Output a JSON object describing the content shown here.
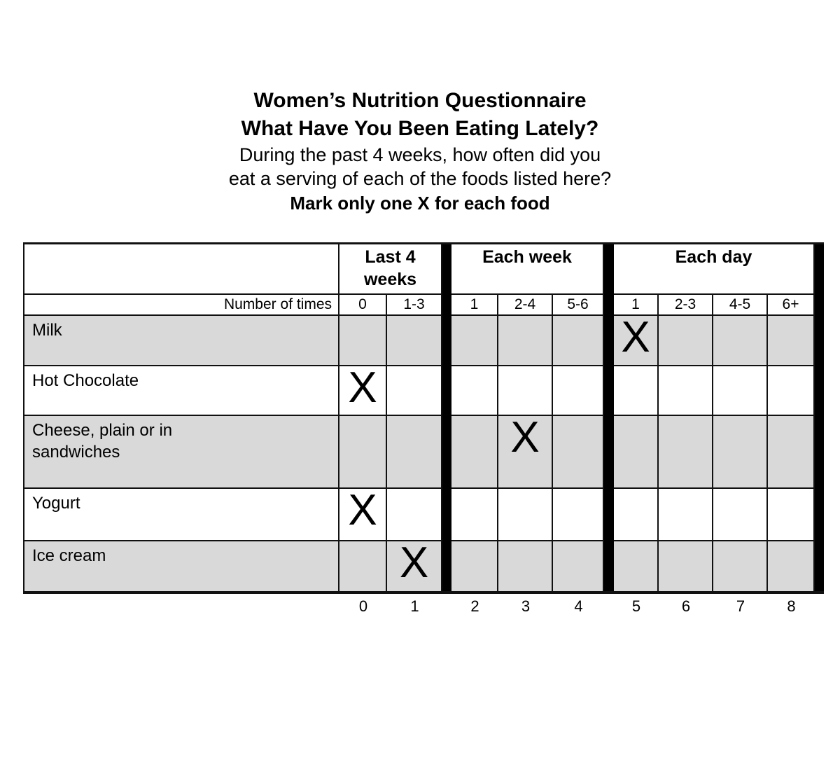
{
  "title": {
    "line1": "Women’s Nutrition Questionnaire",
    "line2": "What Have You Been Eating Lately?",
    "sub1": "During the past 4 weeks, how often did you",
    "sub2": "eat a serving of each of the foods listed here?",
    "instruction": "Mark only one X for each food"
  },
  "table": {
    "group_headers": [
      {
        "label": "Last 4 weeks",
        "span": 2
      },
      {
        "label": "Each week",
        "span": 3
      },
      {
        "label": "Each day",
        "span": 4
      }
    ],
    "row_label_header": "Number of times",
    "frequency_headers": [
      "0",
      "1-3",
      "1",
      "2-4",
      "5-6",
      "1",
      "2-3",
      "4-5",
      "6+"
    ],
    "mark_symbol": "X",
    "rows": [
      {
        "food": "Milk",
        "marked": 5,
        "marked_label": "Each day 1"
      },
      {
        "food": "Hot Chocolate",
        "marked": 0,
        "marked_label": "Last 4 weeks 0"
      },
      {
        "food": "Cheese, plain or in sandwiches",
        "marked": 3,
        "marked_label": "Each week 2-4"
      },
      {
        "food": "Yogurt",
        "marked": 0,
        "marked_label": "Last 4 weeks 0"
      },
      {
        "food": "Ice cream",
        "marked": 1,
        "marked_label": "Last 4 weeks 1-3"
      }
    ],
    "score_row": [
      "0",
      "1",
      "2",
      "3",
      "4",
      "5",
      "6",
      "7",
      "8"
    ],
    "colors": {
      "stripe": "#d9d9d9",
      "divider_bar": "#000000",
      "grid_line": "#111111",
      "background": "#ffffff"
    }
  }
}
